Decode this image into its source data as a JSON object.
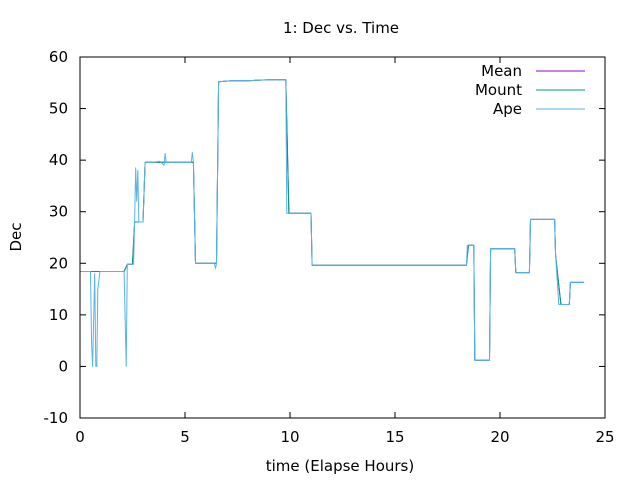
{
  "chart_data": {
    "type": "line",
    "title": "1: Dec vs. Time",
    "xlabel": "time (Elapse Hours)",
    "ylabel": "Dec",
    "xlim": [
      0,
      25
    ],
    "ylim": [
      -10,
      60
    ],
    "xticks": [
      0,
      5,
      10,
      15,
      20,
      25
    ],
    "yticks": [
      -10,
      0,
      10,
      20,
      30,
      40,
      50,
      60
    ],
    "legend_position": "top-right",
    "series": [
      {
        "name": "Mean",
        "color": "#9400d3",
        "points": [
          [
            0,
            18.4
          ],
          [
            0.5,
            18.4
          ],
          [
            0.5,
            18.4
          ],
          [
            0.6,
            18.4
          ],
          [
            1,
            18.4
          ],
          [
            2.1,
            18.4
          ],
          [
            2.25,
            19.8
          ],
          [
            2.5,
            19.8
          ],
          [
            2.6,
            28
          ],
          [
            3.0,
            28
          ],
          [
            3.1,
            39.6
          ],
          [
            3.5,
            39.6
          ],
          [
            4.2,
            39.6
          ],
          [
            5.4,
            39.6
          ],
          [
            5.5,
            20
          ],
          [
            6.5,
            20
          ],
          [
            6.6,
            55.2
          ],
          [
            7.2,
            55.4
          ],
          [
            8.0,
            55.4
          ],
          [
            9.0,
            55.6
          ],
          [
            9.8,
            55.6
          ],
          [
            9.95,
            29.7
          ],
          [
            11.0,
            29.7
          ],
          [
            11.05,
            19.6
          ],
          [
            18.4,
            19.6
          ],
          [
            18.5,
            23.5
          ],
          [
            18.75,
            23.5
          ],
          [
            18.8,
            1.2
          ],
          [
            19.5,
            1.2
          ],
          [
            19.55,
            22.8
          ],
          [
            20.7,
            22.8
          ],
          [
            20.75,
            18.2
          ],
          [
            21.4,
            18.2
          ],
          [
            21.45,
            28.5
          ],
          [
            22.6,
            28.5
          ],
          [
            22.65,
            21.5
          ],
          [
            22.9,
            12
          ],
          [
            23.3,
            12
          ],
          [
            23.35,
            16.3
          ],
          [
            24,
            16.3
          ]
        ]
      },
      {
        "name": "Mount",
        "color": "#009e73",
        "points": [
          [
            0,
            18.4
          ],
          [
            0.5,
            18.4
          ],
          [
            0.6,
            18.4
          ],
          [
            1,
            18.4
          ],
          [
            2.1,
            18.4
          ],
          [
            2.25,
            19.8
          ],
          [
            2.5,
            19.8
          ],
          [
            2.6,
            28
          ],
          [
            3.0,
            28
          ],
          [
            3.1,
            39.6
          ],
          [
            3.5,
            39.6
          ],
          [
            4.2,
            39.6
          ],
          [
            5.4,
            39.6
          ],
          [
            5.5,
            20
          ],
          [
            6.5,
            20
          ],
          [
            6.6,
            55.2
          ],
          [
            7.2,
            55.4
          ],
          [
            8.0,
            55.4
          ],
          [
            9.0,
            55.6
          ],
          [
            9.8,
            55.6
          ],
          [
            9.95,
            29.7
          ],
          [
            11.0,
            29.7
          ],
          [
            11.05,
            19.6
          ],
          [
            18.4,
            19.6
          ],
          [
            18.5,
            23.5
          ],
          [
            18.75,
            23.5
          ],
          [
            18.8,
            1.2
          ],
          [
            19.5,
            1.2
          ],
          [
            19.55,
            22.8
          ],
          [
            20.7,
            22.8
          ],
          [
            20.75,
            18.2
          ],
          [
            21.4,
            18.2
          ],
          [
            21.45,
            28.5
          ],
          [
            22.6,
            28.5
          ],
          [
            22.65,
            21.5
          ],
          [
            22.9,
            12
          ],
          [
            23.3,
            12
          ],
          [
            23.35,
            16.3
          ],
          [
            24,
            16.3
          ]
        ]
      },
      {
        "name": "Ape",
        "color": "#56b4e9",
        "points": [
          [
            0,
            18.4
          ],
          [
            0.5,
            18.4
          ],
          [
            0.55,
            5
          ],
          [
            0.6,
            0
          ],
          [
            0.7,
            18
          ],
          [
            0.75,
            0
          ],
          [
            0.8,
            0
          ],
          [
            0.85,
            15
          ],
          [
            0.95,
            18.4
          ],
          [
            2.1,
            18.4
          ],
          [
            2.2,
            0
          ],
          [
            2.25,
            19.8
          ],
          [
            2.55,
            19.8
          ],
          [
            2.6,
            28
          ],
          [
            2.65,
            38.5
          ],
          [
            2.7,
            32
          ],
          [
            2.75,
            38
          ],
          [
            2.8,
            28
          ],
          [
            3.0,
            28
          ],
          [
            3.1,
            39.6
          ],
          [
            3.5,
            39.6
          ],
          [
            3.8,
            39.8
          ],
          [
            4.0,
            39.0
          ],
          [
            4.05,
            41.3
          ],
          [
            4.1,
            39.6
          ],
          [
            5.3,
            39.6
          ],
          [
            5.35,
            41.5
          ],
          [
            5.4,
            39.6
          ],
          [
            5.5,
            20
          ],
          [
            6.4,
            20
          ],
          [
            6.45,
            19
          ],
          [
            6.5,
            20
          ],
          [
            6.6,
            55.2
          ],
          [
            7.2,
            55.4
          ],
          [
            8.0,
            55.4
          ],
          [
            9.0,
            55.6
          ],
          [
            9.8,
            55.6
          ],
          [
            9.85,
            29.7
          ],
          [
            11.0,
            29.7
          ],
          [
            11.05,
            19.6
          ],
          [
            18.4,
            19.6
          ],
          [
            18.45,
            23.5
          ],
          [
            18.75,
            23.5
          ],
          [
            18.8,
            1.2
          ],
          [
            19.5,
            1.2
          ],
          [
            19.55,
            22.8
          ],
          [
            20.7,
            22.8
          ],
          [
            20.75,
            18.2
          ],
          [
            21.4,
            18.2
          ],
          [
            21.45,
            28.5
          ],
          [
            22.6,
            28.5
          ],
          [
            22.65,
            21.5
          ],
          [
            22.8,
            12
          ],
          [
            23.3,
            12
          ],
          [
            23.35,
            16.3
          ],
          [
            24,
            16.3
          ]
        ]
      }
    ]
  }
}
